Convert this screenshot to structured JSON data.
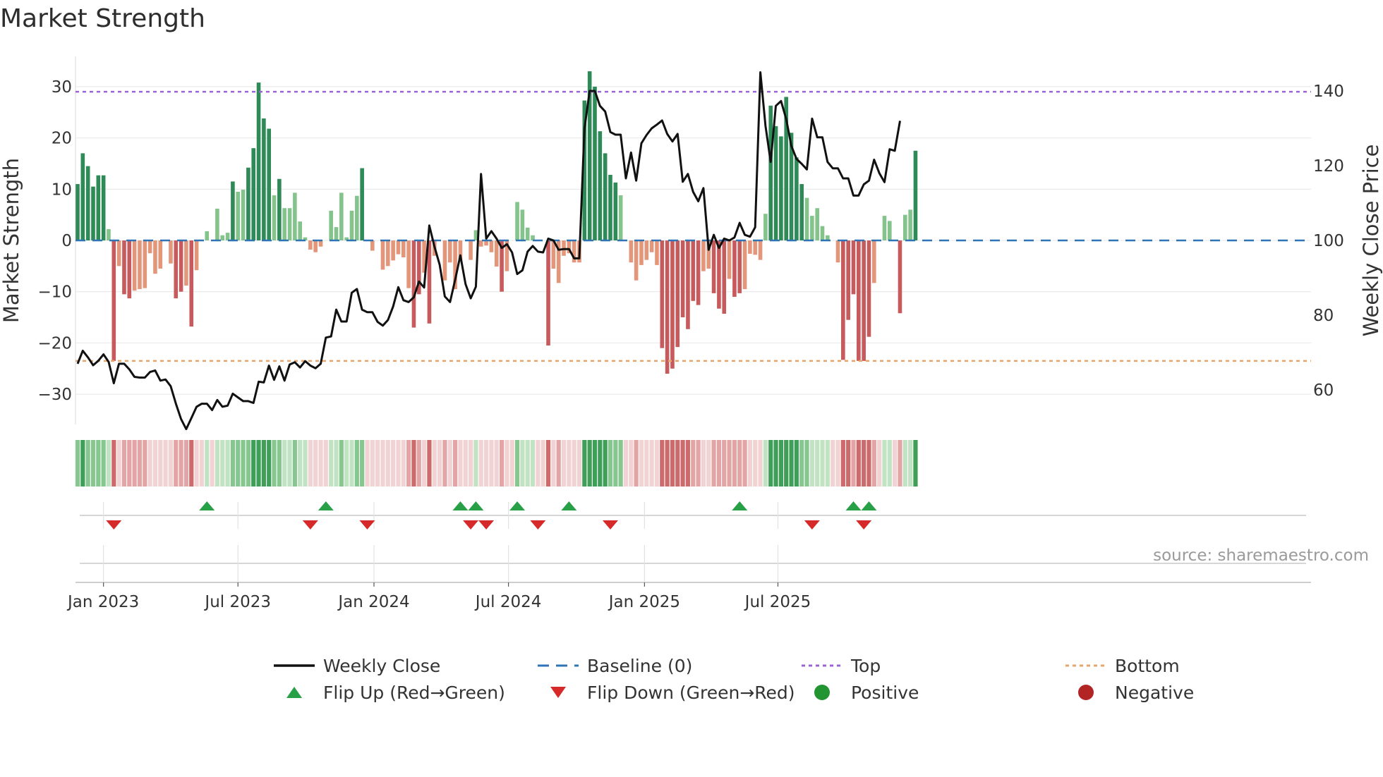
{
  "chart_data": {
    "type": "bar+line",
    "title": "Market Strength",
    "ylabel_left": "Market Strength",
    "ylabel_right": "Weekly Close Price",
    "ylim_left": [
      -36,
      36
    ],
    "ylim_right": [
      50,
      150
    ],
    "yticks_left": [
      30,
      20,
      10,
      0,
      -10,
      -20,
      -30
    ],
    "ytick_labels_left": [
      "30",
      "20",
      "10",
      "0",
      "−10",
      "−20",
      "−30"
    ],
    "yticks_right": [
      140,
      120,
      100,
      80,
      60
    ],
    "ytick_labels_right": [
      "140",
      "120",
      "100",
      "80",
      "60"
    ],
    "x_start": "2022-11-28",
    "x_interval_days": 7,
    "top_level": 29,
    "bottom_level": -23.5,
    "xticks": [
      {
        "label": "Jan 2023",
        "week": 5
      },
      {
        "label": "Jul 2023",
        "week": 31
      },
      {
        "label": "Jan 2024",
        "week": 57.3
      },
      {
        "label": "Jul 2024",
        "week": 83.3
      },
      {
        "label": "Jan 2025",
        "week": 109.6
      },
      {
        "label": "Jul 2025",
        "week": 135.4
      }
    ],
    "strength": [
      11,
      17,
      14.5,
      10.5,
      12.7,
      12.7,
      2.2,
      -23.5,
      -5,
      -10.5,
      -11.3,
      -9.8,
      -9.5,
      -9.3,
      -2.5,
      -6.5,
      -5.5,
      0,
      -4.5,
      -11.3,
      -10,
      -8.8,
      -16.8,
      -5.8,
      0,
      1.8,
      0,
      6.2,
      1,
      1.5,
      11.5,
      9.5,
      9.9,
      14.2,
      18,
      30.8,
      23.8,
      21.8,
      8.8,
      12,
      6.3,
      6.3,
      9.3,
      3.7,
      0.6,
      -1.8,
      -2.3,
      -1.2,
      0,
      5.8,
      2.6,
      9.3,
      0.6,
      5.8,
      8.7,
      14.1,
      0,
      -2,
      0,
      -5.7,
      -5,
      -3.9,
      -2.7,
      -3.3,
      -9.3,
      -17,
      -10.5,
      -6.3,
      -16.2,
      -3,
      0,
      -7.8,
      -4.3,
      -9.5,
      -4,
      0,
      -3.8,
      2,
      -1.2,
      -1,
      -2.3,
      -5.1,
      -10,
      -6,
      0,
      7.5,
      6,
      2.5,
      1,
      0,
      0,
      -20.5,
      -5.5,
      -8.3,
      -3,
      -2.5,
      -4.3,
      -4.3,
      27.3,
      33,
      30,
      21.3,
      17,
      12.8,
      11.3,
      8.8,
      0,
      -4.3,
      -7.8,
      -4.8,
      -3.8,
      -2.3,
      -4.8,
      -21,
      -26,
      -25,
      -20.8,
      -15,
      -17.3,
      -11.8,
      -12.6,
      -6,
      -5.5,
      -10.3,
      -13.3,
      -14.3,
      -7.5,
      -11,
      -10.3,
      -9.5,
      -2.6,
      -2.8,
      -3.8,
      5.2,
      26.3,
      22.3,
      20.3,
      28,
      21,
      16.2,
      11,
      8.3,
      4.8,
      6.3,
      2.8,
      1,
      0,
      -4.3,
      -23.3,
      -15.5,
      -10.5,
      -23.5,
      -23.5,
      -18.8,
      -8.3,
      0,
      4.8,
      3.8,
      0,
      -14.2,
      5,
      6,
      17.5
    ],
    "close": [
      67,
      70.5,
      68.7,
      66.6,
      67.8,
      69.5,
      67.5,
      61.8,
      67,
      67,
      65.5,
      63.5,
      63.3,
      63.3,
      64.8,
      65.2,
      62.5,
      62.8,
      61,
      56.3,
      52.2,
      49.5,
      52.5,
      55.5,
      56.3,
      56.3,
      54.6,
      57.3,
      55.5,
      55.8,
      59,
      58,
      57,
      57,
      56.5,
      62.2,
      62,
      66.5,
      62.7,
      66.3,
      62.5,
      66.8,
      67.4,
      66,
      67.7,
      66.5,
      65.8,
      67,
      74,
      74.3,
      81.5,
      78.3,
      78.3,
      86,
      87,
      81.5,
      80.8,
      80.8,
      78.2,
      77.2,
      78.7,
      82.3,
      87.5,
      84,
      83.5,
      84.8,
      89,
      87.4,
      104,
      98.3,
      93.5,
      85,
      83.5,
      89.5,
      96,
      88.3,
      84.5,
      87.6,
      117.8,
      100.5,
      102.5,
      100.5,
      98,
      99,
      96.8,
      91,
      92,
      97,
      98.5,
      97,
      96.8,
      100.5,
      100,
      97.5,
      97.7,
      97.7,
      95.2,
      95.2,
      130,
      140,
      140,
      136,
      134.5,
      129,
      128.3,
      128.3,
      116.6,
      123.5,
      116,
      126,
      128.2,
      130,
      131,
      132.1,
      128.5,
      126.5,
      128.5,
      115.7,
      117.8,
      113,
      110.5,
      114,
      97.5,
      101.5,
      98,
      100.5,
      100,
      100.8,
      104.7,
      101.5,
      101,
      103.5,
      145,
      130.6,
      121,
      136,
      137.3,
      132.5,
      125.3,
      121.8,
      120.5,
      119,
      132.6,
      127.6,
      127.6,
      121,
      119.3,
      119.3,
      116.6,
      116.6,
      112,
      112,
      115,
      116,
      121.6,
      118,
      115.6,
      124.4,
      124,
      132
    ],
    "markers": {
      "flip_up_weeks": [
        25,
        48,
        74,
        77,
        85,
        95,
        128,
        150,
        153
      ],
      "flip_down_weeks": [
        7,
        45,
        56,
        76,
        79,
        89,
        103,
        142,
        152
      ]
    },
    "legend": [
      {
        "label": "Weekly Close",
        "symbol": "line",
        "color": "#111111"
      },
      {
        "label": "Baseline (0)",
        "symbol": "dash",
        "color": "#2f74b5"
      },
      {
        "label": "Top",
        "symbol": "dot",
        "color": "#9c63d6"
      },
      {
        "label": "Bottom",
        "symbol": "dot",
        "color": "#e7a56a"
      },
      {
        "label": "Flip Up (Red→Green)",
        "symbol": "triangle-up",
        "color": "#27a047"
      },
      {
        "label": "Flip Down (Green→Red)",
        "symbol": "triangle-down",
        "color": "#d62a2a"
      },
      {
        "label": "Positive",
        "symbol": "circle",
        "color": "#229431"
      },
      {
        "label": "Negative",
        "symbol": "circle",
        "color": "#b32525"
      }
    ],
    "source": "source: sharemaestro.com"
  }
}
